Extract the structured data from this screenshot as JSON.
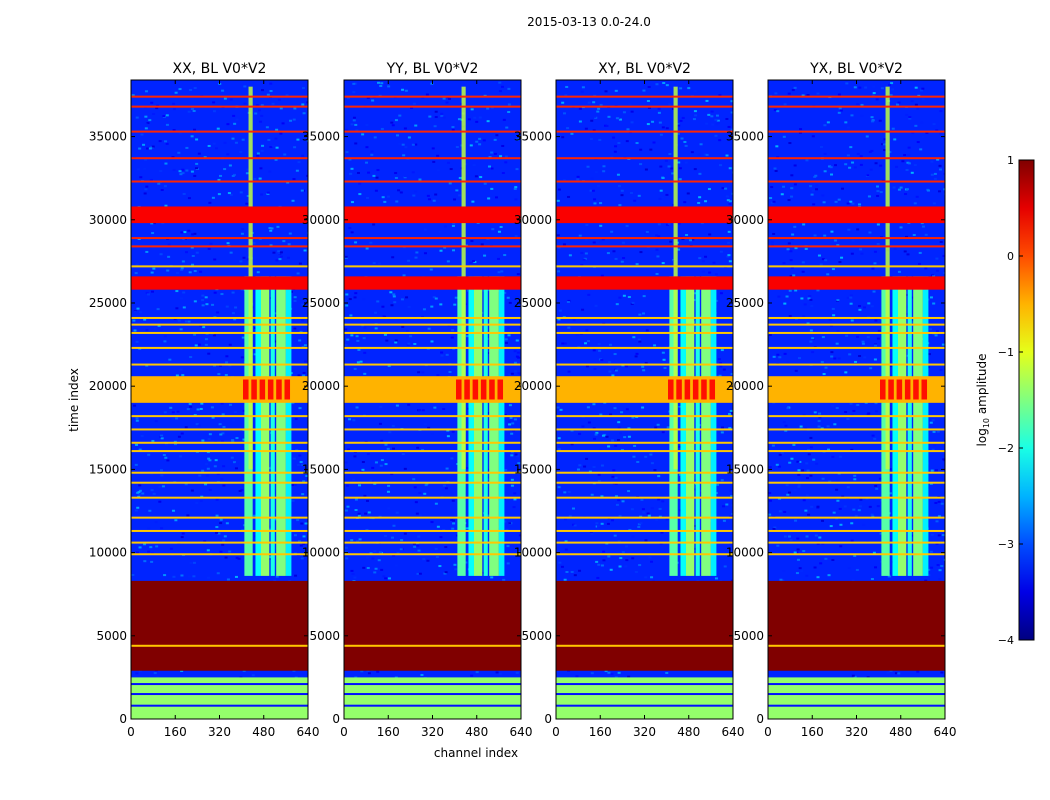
{
  "figure_title": "2015-03-13 0.0-24.0",
  "chart_data": {
    "type": "heatmap",
    "panels": [
      {
        "title": "XX, BL V0*V2",
        "pol": "XX"
      },
      {
        "title": "YY, BL V0*V2",
        "pol": "YY"
      },
      {
        "title": "XY, BL V0*V2",
        "pol": "XY"
      },
      {
        "title": "YX, BL V0*V2",
        "pol": "YX"
      }
    ],
    "xlabel": "channel index",
    "ylabel": "time index",
    "xlim": [
      0,
      640
    ],
    "ylim": [
      0,
      38400
    ],
    "xticks": [
      0,
      160,
      320,
      480,
      640
    ],
    "yticks": [
      0,
      5000,
      10000,
      15000,
      20000,
      25000,
      30000,
      35000
    ],
    "colorbar": {
      "label": "log10 amplitude",
      "label_base": "log",
      "label_sub": "10",
      "label_rest": " amplitude",
      "range": [
        -4,
        1
      ],
      "ticks": [
        1,
        0,
        -1,
        -2,
        -3,
        -4
      ],
      "tick_labels": [
        "1",
        "0",
        "−1",
        "−2",
        "−3",
        "−4"
      ],
      "colormap": "jet"
    },
    "regions": [
      {
        "desc": "bottom flagged rows",
        "t0": 0,
        "t1": 2500,
        "value": -1.4
      },
      {
        "desc": "saturated block",
        "t0": 2900,
        "t1": 8300,
        "value": 1.0
      },
      {
        "desc": "bright band",
        "t0": 19000,
        "t1": 20600,
        "value": -0.5
      },
      {
        "desc": "flagged band",
        "t0": 25800,
        "t1": 26600,
        "value": 0.4
      },
      {
        "desc": "flagged band",
        "t0": 29800,
        "t1": 30800,
        "value": 0.4
      }
    ],
    "rfi_channel_range": [
      400,
      580
    ],
    "background_value": -3.2
  }
}
